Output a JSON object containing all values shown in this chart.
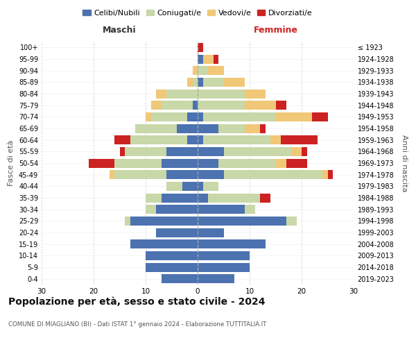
{
  "age_groups": [
    "0-4",
    "5-9",
    "10-14",
    "15-19",
    "20-24",
    "25-29",
    "30-34",
    "35-39",
    "40-44",
    "45-49",
    "50-54",
    "55-59",
    "60-64",
    "65-69",
    "70-74",
    "75-79",
    "80-84",
    "85-89",
    "90-94",
    "95-99",
    "100+"
  ],
  "birth_years": [
    "2019-2023",
    "2014-2018",
    "2009-2013",
    "2004-2008",
    "1999-2003",
    "1994-1998",
    "1989-1993",
    "1984-1988",
    "1979-1983",
    "1974-1978",
    "1969-1973",
    "1964-1968",
    "1959-1963",
    "1954-1958",
    "1949-1953",
    "1944-1948",
    "1939-1943",
    "1934-1938",
    "1929-1933",
    "1924-1928",
    "≤ 1923"
  ],
  "colors": {
    "celibi": "#4c72b0",
    "coniugati": "#c8d8a8",
    "vedovi": "#f0c878",
    "divorziati": "#cc2222"
  },
  "maschi": {
    "celibi": [
      7,
      10,
      10,
      13,
      8,
      13,
      8,
      7,
      3,
      6,
      7,
      6,
      2,
      4,
      2,
      1,
      0,
      0,
      0,
      0,
      0
    ],
    "coniugati": [
      0,
      0,
      0,
      0,
      0,
      1,
      2,
      3,
      3,
      10,
      9,
      8,
      11,
      8,
      7,
      6,
      6,
      1,
      0,
      0,
      0
    ],
    "vedovi": [
      0,
      0,
      0,
      0,
      0,
      0,
      0,
      0,
      0,
      1,
      0,
      0,
      0,
      0,
      1,
      2,
      2,
      1,
      1,
      0,
      0
    ],
    "divorziati": [
      0,
      0,
      0,
      0,
      0,
      0,
      0,
      0,
      0,
      0,
      5,
      1,
      3,
      0,
      0,
      0,
      0,
      0,
      0,
      0,
      0
    ]
  },
  "femmine": {
    "celibi": [
      7,
      10,
      10,
      13,
      5,
      17,
      9,
      2,
      1,
      5,
      4,
      5,
      1,
      4,
      1,
      0,
      0,
      1,
      0,
      1,
      0
    ],
    "coniugati": [
      0,
      0,
      0,
      0,
      0,
      2,
      2,
      10,
      3,
      19,
      11,
      13,
      13,
      5,
      14,
      9,
      9,
      4,
      2,
      0,
      0
    ],
    "vedovi": [
      0,
      0,
      0,
      0,
      0,
      0,
      0,
      0,
      0,
      1,
      2,
      2,
      2,
      3,
      7,
      6,
      4,
      4,
      3,
      2,
      0
    ],
    "divorziati": [
      0,
      0,
      0,
      0,
      0,
      0,
      0,
      2,
      0,
      1,
      4,
      1,
      7,
      1,
      3,
      2,
      0,
      0,
      0,
      1,
      1
    ]
  },
  "title": "Popolazione per età, sesso e stato civile - 2024",
  "subtitle": "COMUNE DI MIAGLIANO (BI) - Dati ISTAT 1° gennaio 2024 - Elaborazione TUTTITALIA.IT",
  "xlabel_left": "Maschi",
  "xlabel_right": "Femmine",
  "ylabel_left": "Fasce di età",
  "ylabel_right": "Anni di nascita",
  "xlim": 30,
  "legend_labels": [
    "Celibi/Nubili",
    "Coniugati/e",
    "Vedovi/e",
    "Divorziati/e"
  ],
  "background_color": "#ffffff",
  "grid_color": "#cccccc"
}
